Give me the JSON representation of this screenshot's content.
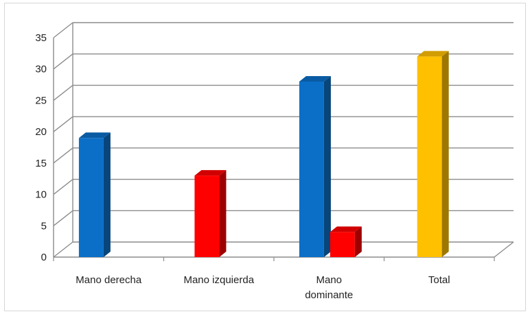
{
  "chart_data": {
    "type": "bar",
    "title": "",
    "xlabel": "",
    "ylabel": "",
    "ylim": [
      0,
      35
    ],
    "yticks": [
      "0",
      "5",
      "10",
      "15",
      "20",
      "25",
      "30",
      "35"
    ],
    "categories": [
      [
        "Mano derecha"
      ],
      [
        "Mano izquierda"
      ],
      [
        "Mano",
        "dominante"
      ],
      [
        "Total"
      ]
    ],
    "category_labels": [
      "Mano derecha",
      "Mano izquierda",
      "Mano dominante",
      "Total"
    ],
    "bars": [
      {
        "category": 0,
        "value": 19,
        "color": "#0b6fc7"
      },
      {
        "category": 1,
        "value": 13,
        "color": "#ff0000"
      },
      {
        "category": 2,
        "value": 28,
        "color": "#0b6fc7"
      },
      {
        "category": 2,
        "value": 4,
        "color": "#ff0000"
      },
      {
        "category": 3,
        "value": 32,
        "color": "#ffc000"
      }
    ],
    "grid": true,
    "legend": "none"
  }
}
